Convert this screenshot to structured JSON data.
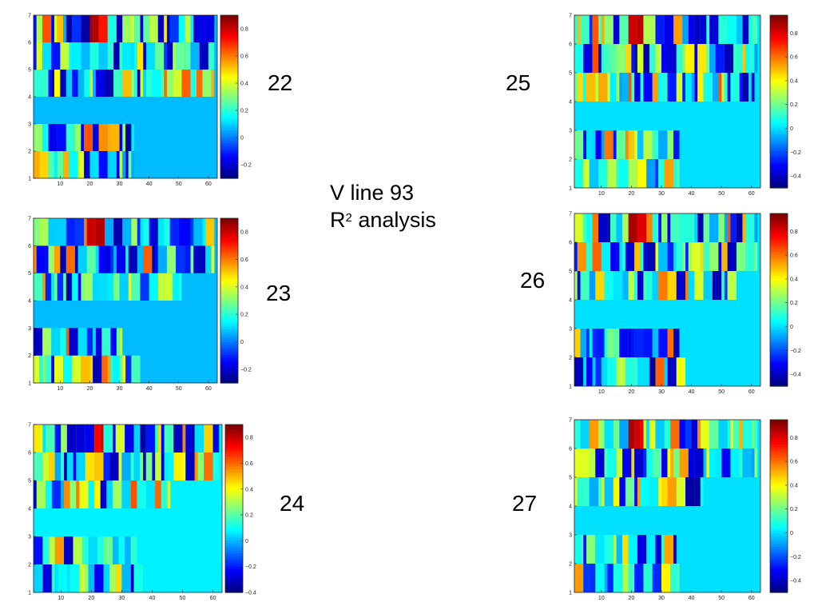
{
  "title": {
    "line1": "V line 93",
    "line2_prefix": "R",
    "line2_sup": "2",
    "line2_suffix": " analysis"
  },
  "chart_data": [
    {
      "type": "heatmap",
      "label": "22",
      "xticks": [
        10,
        20,
        30,
        40,
        50,
        60
      ],
      "yticks": [
        1,
        2,
        3,
        4,
        5,
        6,
        7
      ],
      "colorbar_ticks": [
        0.8,
        0.6,
        0.4,
        0.2,
        0,
        -0.2
      ],
      "clim": [
        -0.3,
        0.9
      ],
      "colormap": "jet",
      "xlim": [
        1,
        63
      ],
      "ylim": [
        1,
        7
      ],
      "row_lengths": [
        34,
        34,
        0,
        61,
        61,
        61
      ],
      "background": 0.07
    },
    {
      "type": "heatmap",
      "label": "23",
      "xticks": [
        10,
        20,
        30,
        40,
        50,
        60
      ],
      "yticks": [
        1,
        2,
        3,
        4,
        5,
        6,
        7
      ],
      "colorbar_ticks": [
        0.8,
        0.6,
        0.4,
        0.2,
        0,
        -0.2
      ],
      "clim": [
        -0.3,
        0.9
      ],
      "colormap": "jet",
      "xlim": [
        1,
        63
      ],
      "ylim": [
        1,
        7
      ],
      "row_lengths": [
        36,
        30,
        0,
        50,
        61,
        61
      ],
      "background": 0.07
    },
    {
      "type": "heatmap",
      "label": "24",
      "xticks": [
        10,
        20,
        30,
        40,
        50,
        60
      ],
      "yticks": [
        1,
        2,
        3,
        4,
        5,
        6,
        7
      ],
      "colorbar_ticks": [
        0.8,
        0.6,
        0.4,
        0.2,
        0,
        -0.2,
        -0.4
      ],
      "clim": [
        -0.4,
        0.9
      ],
      "colormap": "jet",
      "xlim": [
        1,
        63
      ],
      "ylim": [
        1,
        7
      ],
      "row_lengths": [
        36,
        34,
        0,
        45,
        61,
        61
      ],
      "background": 0.07
    },
    {
      "type": "heatmap",
      "label": "25",
      "xticks": [
        10,
        20,
        30,
        40,
        50,
        60
      ],
      "yticks": [
        1,
        2,
        3,
        4,
        5,
        6,
        7
      ],
      "colorbar_ticks": [
        0.8,
        0.6,
        0.4,
        0.2,
        0,
        -0.2,
        -0.4
      ],
      "clim": [
        -0.5,
        0.95
      ],
      "colormap": "jet",
      "xlim": [
        1,
        63
      ],
      "ylim": [
        1,
        7
      ],
      "row_lengths": [
        35,
        35,
        0,
        60,
        61,
        61
      ],
      "background": 0.0
    },
    {
      "type": "heatmap",
      "label": "26",
      "xticks": [
        10,
        20,
        30,
        40,
        50,
        60
      ],
      "yticks": [
        1,
        2,
        3,
        4,
        5,
        6,
        7
      ],
      "colorbar_ticks": [
        0.8,
        0.6,
        0.4,
        0.2,
        0,
        -0.2,
        -0.4
      ],
      "clim": [
        -0.5,
        0.95
      ],
      "colormap": "jet",
      "xlim": [
        1,
        63
      ],
      "ylim": [
        1,
        7
      ],
      "row_lengths": [
        37,
        35,
        0,
        54,
        61,
        61
      ],
      "background": 0.0
    },
    {
      "type": "heatmap",
      "label": "27",
      "xticks": [
        10,
        20,
        30,
        40,
        50,
        60
      ],
      "yticks": [
        1,
        2,
        3,
        4,
        5,
        6,
        7
      ],
      "colorbar_ticks": [
        0.8,
        0.6,
        0.4,
        0.2,
        0,
        -0.2,
        -0.4
      ],
      "clim": [
        -0.5,
        0.95
      ],
      "colormap": "jet",
      "xlim": [
        1,
        63
      ],
      "ylim": [
        1,
        7
      ],
      "row_lengths": [
        35,
        34,
        0,
        43,
        61,
        61
      ],
      "background": 0.0
    }
  ]
}
